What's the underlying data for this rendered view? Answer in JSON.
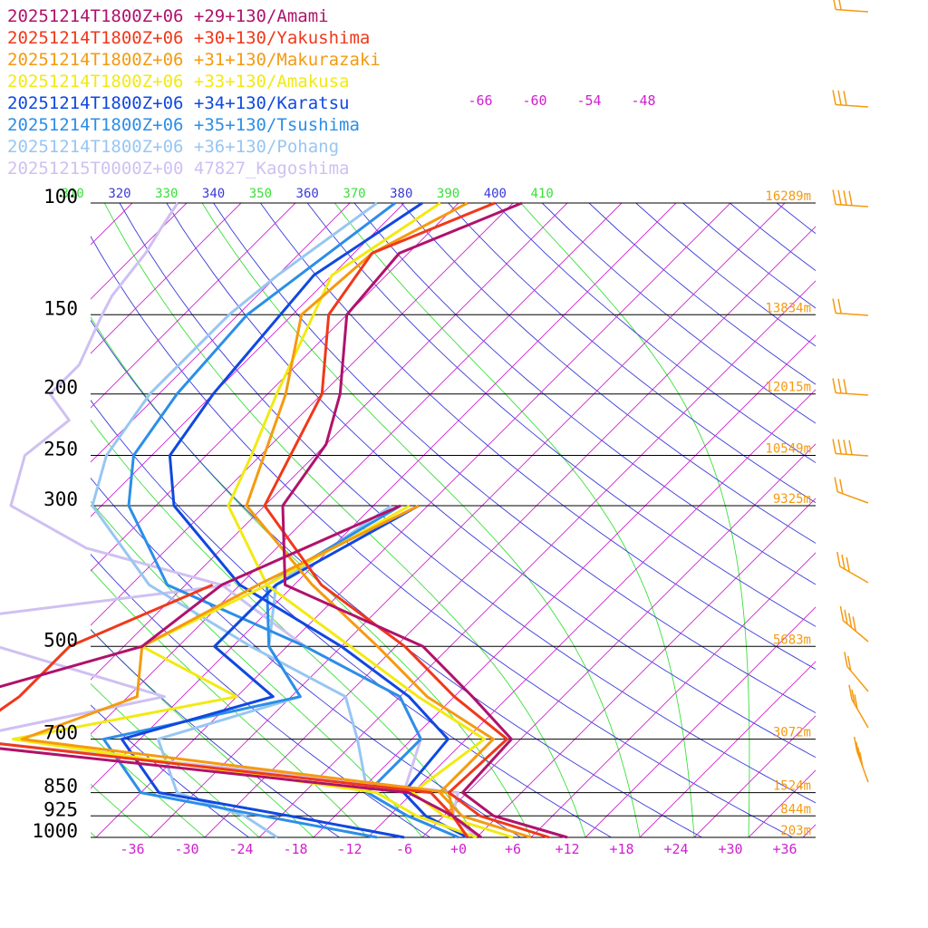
{
  "legend": [
    {
      "text": "20251214T1800Z+06 +29+130/Amami",
      "color": "#b0126b"
    },
    {
      "text": "20251214T1800Z+06 +30+130/Yakushima",
      "color": "#f0381a"
    },
    {
      "text": "20251214T1800Z+06 +31+130/Makurazaki",
      "color": "#f59a10"
    },
    {
      "text": "20251214T1800Z+06 +33+130/Amakusa",
      "color": "#f2ea12"
    },
    {
      "text": "20251214T1800Z+06 +34+130/Karatsu",
      "color": "#1048e0"
    },
    {
      "text": "20251214T1800Z+06 +35+130/Tsushima",
      "color": "#2c8ee8"
    },
    {
      "text": "20251214T1800Z+06 +36+130/Pohang",
      "color": "#98c6f2"
    },
    {
      "text": "20251215T0000Z+00 47827_Kagoshima",
      "color": "#cfc0f2"
    }
  ],
  "chart_data": {
    "type": "line",
    "pressure_labels": [
      "100",
      "150",
      "200",
      "250",
      "300",
      "500",
      "700",
      "850",
      "925",
      "1000"
    ],
    "height_labels": [
      "16289m",
      "13834m",
      "12015m",
      "10549m",
      "9325m",
      "5683m",
      "3072m",
      "1524m",
      "844m",
      "203m"
    ],
    "temperature_ticks": [
      "-36",
      "-30",
      "-24",
      "-18",
      "-12",
      "-6",
      "+0",
      "+6",
      "+12",
      "+18",
      "+24",
      "+30",
      "+36"
    ],
    "isotherm_top_labels": [
      "-66",
      "-60",
      "-54",
      "-48"
    ],
    "theta_labels": [
      "310",
      "320",
      "330",
      "340",
      "350",
      "360",
      "370",
      "380",
      "390",
      "400",
      "410"
    ],
    "colors": {
      "isobar": "#000000",
      "isotherm": "#d020d0",
      "dry_adiabat": "#3a3ad8",
      "moist_adiabat": "#3ae03a",
      "height_label": "#f59a10",
      "wind_barb": "#f59a10"
    },
    "series": [
      {
        "color": "#b0126b",
        "temperature": [
          [
            100,
            -63
          ],
          [
            120,
            -71
          ],
          [
            150,
            -70
          ],
          [
            200,
            -62
          ],
          [
            240,
            -58
          ],
          [
            300,
            -56
          ],
          [
            400,
            -47
          ],
          [
            500,
            -25
          ],
          [
            600,
            -14
          ],
          [
            700,
            -5
          ],
          [
            850,
            -4.5
          ],
          [
            925,
            1.5
          ],
          [
            1000,
            12
          ]
        ],
        "dewpoint": [
          [
            300,
            -43
          ],
          [
            400,
            -54
          ],
          [
            500,
            -56
          ],
          [
            600,
            -70
          ],
          [
            700,
            -71
          ],
          [
            850,
            -10.5
          ],
          [
            925,
            -3
          ],
          [
            1000,
            2.5
          ]
        ]
      },
      {
        "color": "#f0381a",
        "temperature": [
          [
            100,
            -66
          ],
          [
            120,
            -74
          ],
          [
            150,
            -72
          ],
          [
            200,
            -64
          ],
          [
            300,
            -58
          ],
          [
            400,
            -43
          ],
          [
            500,
            -27
          ],
          [
            600,
            -16
          ],
          [
            700,
            -5.5
          ],
          [
            850,
            -6
          ],
          [
            925,
            0
          ],
          [
            1000,
            10
          ]
        ],
        "dewpoint": [
          [
            400,
            -55
          ],
          [
            500,
            -64
          ],
          [
            600,
            -64
          ],
          [
            700,
            -66
          ],
          [
            850,
            -8
          ],
          [
            925,
            -3
          ],
          [
            1000,
            1
          ]
        ]
      },
      {
        "color": "#f59a10",
        "temperature": [
          [
            100,
            -69
          ],
          [
            120,
            -74
          ],
          [
            150,
            -75
          ],
          [
            200,
            -68
          ],
          [
            300,
            -60
          ],
          [
            400,
            -44
          ],
          [
            500,
            -30
          ],
          [
            600,
            -19
          ],
          [
            700,
            -7
          ],
          [
            850,
            -7
          ],
          [
            925,
            -2
          ],
          [
            1000,
            8
          ]
        ],
        "dewpoint": [
          [
            300,
            -41
          ],
          [
            400,
            -50
          ],
          [
            500,
            -56
          ],
          [
            600,
            -51
          ],
          [
            700,
            -59
          ],
          [
            850,
            -6
          ],
          [
            925,
            -3
          ],
          [
            1000,
            1
          ]
        ]
      },
      {
        "color": "#f2ea12",
        "temperature": [
          [
            100,
            -72
          ],
          [
            130,
            -76
          ],
          [
            200,
            -69
          ],
          [
            250,
            -65
          ],
          [
            300,
            -62
          ],
          [
            400,
            -49
          ],
          [
            500,
            -33
          ],
          [
            600,
            -20
          ],
          [
            700,
            -8
          ],
          [
            850,
            -10
          ],
          [
            925,
            -4
          ],
          [
            1000,
            6
          ]
        ],
        "dewpoint": [
          [
            300,
            -42
          ],
          [
            400,
            -49
          ],
          [
            500,
            -56
          ],
          [
            600,
            -40
          ],
          [
            700,
            -60
          ],
          [
            850,
            -14
          ],
          [
            925,
            -7
          ],
          [
            1000,
            2
          ]
        ]
      },
      {
        "color": "#1048e0",
        "temperature": [
          [
            100,
            -74
          ],
          [
            130,
            -78
          ],
          [
            200,
            -76
          ],
          [
            250,
            -74
          ],
          [
            300,
            -68
          ],
          [
            400,
            -52
          ],
          [
            500,
            -34
          ],
          [
            600,
            -21
          ],
          [
            700,
            -12
          ],
          [
            850,
            -11
          ],
          [
            925,
            -6
          ],
          [
            1000,
            1
          ]
        ],
        "dewpoint": [
          [
            300,
            -41
          ],
          [
            400,
            -48
          ],
          [
            500,
            -48
          ],
          [
            600,
            -36
          ],
          [
            700,
            -48
          ],
          [
            850,
            -38
          ],
          [
            925,
            -21
          ],
          [
            1000,
            -6
          ]
        ]
      },
      {
        "color": "#2c8ee8",
        "temperature": [
          [
            100,
            -77
          ],
          [
            150,
            -81
          ],
          [
            200,
            -80
          ],
          [
            250,
            -78
          ],
          [
            300,
            -73
          ],
          [
            400,
            -60
          ],
          [
            500,
            -38
          ],
          [
            600,
            -22
          ],
          [
            700,
            -15
          ],
          [
            850,
            -15
          ],
          [
            925,
            -8
          ],
          [
            1000,
            0
          ]
        ],
        "dewpoint": [
          [
            300,
            -43
          ],
          [
            400,
            -49
          ],
          [
            500,
            -42
          ],
          [
            600,
            -33
          ],
          [
            700,
            -50
          ],
          [
            850,
            -40
          ],
          [
            925,
            -24
          ],
          [
            1000,
            -9
          ]
        ]
      },
      {
        "color": "#98c6f2",
        "temperature": [
          [
            100,
            -79
          ],
          [
            130,
            -82
          ],
          [
            150,
            -83
          ],
          [
            200,
            -83
          ],
          [
            250,
            -81
          ],
          [
            300,
            -77
          ],
          [
            400,
            -62
          ],
          [
            500,
            -44
          ],
          [
            600,
            -28
          ],
          [
            700,
            -22
          ],
          [
            850,
            -15
          ],
          [
            925,
            -8
          ],
          [
            1000,
            0
          ]
        ],
        "dewpoint": [
          [
            300,
            -44
          ],
          [
            400,
            -48
          ],
          [
            500,
            -42
          ],
          [
            600,
            -33
          ],
          [
            700,
            -44
          ],
          [
            850,
            -36
          ],
          [
            925,
            -26
          ],
          [
            1000,
            -20
          ]
        ]
      },
      {
        "color": "#cfc0f2",
        "temperature": [
          [
            100,
            -101
          ],
          [
            110,
            -100
          ],
          [
            120,
            -99
          ],
          [
            140,
            -98
          ],
          [
            150,
            -97
          ],
          [
            180,
            -94
          ],
          [
            200,
            -94
          ],
          [
            220,
            -89
          ],
          [
            250,
            -90
          ],
          [
            300,
            -86
          ],
          [
            350,
            -73
          ],
          [
            400,
            -54
          ],
          [
            500,
            -38
          ],
          [
            600,
            -22
          ],
          [
            700,
            -15
          ],
          [
            850,
            -11
          ],
          [
            925,
            -6
          ],
          [
            1000,
            1
          ]
        ],
        "dewpoint": [
          [
            400,
            -53
          ],
          [
            450,
            -78
          ],
          [
            500,
            -72
          ],
          [
            600,
            -48
          ],
          [
            700,
            -66
          ],
          [
            850,
            -5
          ],
          [
            925,
            -3
          ],
          [
            1000,
            2
          ]
        ]
      }
    ]
  }
}
